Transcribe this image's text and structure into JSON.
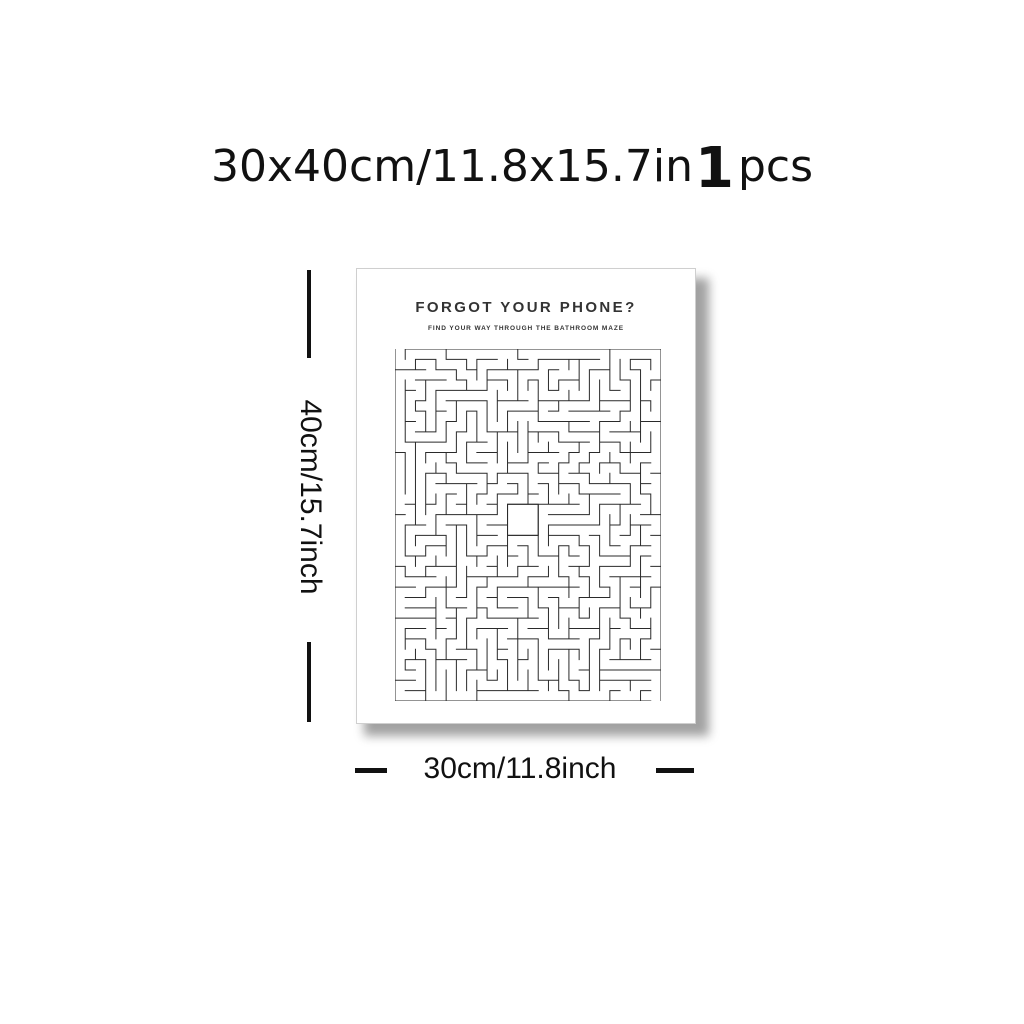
{
  "product": {
    "size_text": "30x40cm/11.8x15.7in",
    "quantity": "1",
    "quantity_unit": "pcs"
  },
  "poster": {
    "title": "FORGOT YOUR PHONE?",
    "subtitle": "FIND YOUR WAY THROUGH THE BATHROOM MAZE"
  },
  "dimensions": {
    "width_label": "30cm/11.8inch",
    "height_label": "40cm/15.7inch"
  }
}
